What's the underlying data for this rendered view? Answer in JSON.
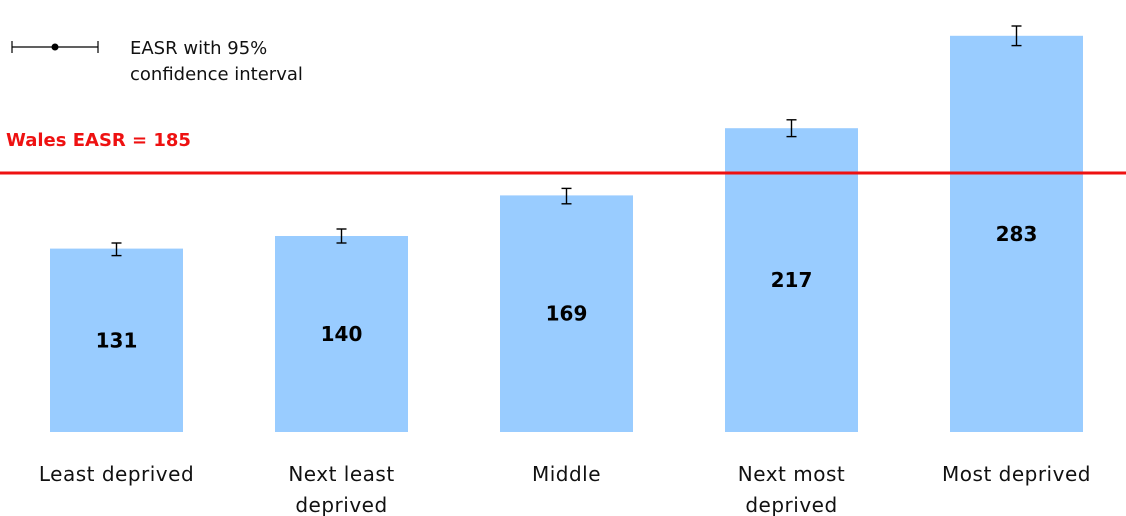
{
  "chart_data": {
    "type": "bar",
    "categories": [
      [
        "Least deprived"
      ],
      [
        "Next least",
        "deprived"
      ],
      [
        "Middle"
      ],
      [
        "Next most",
        "deprived"
      ],
      [
        "Most deprived"
      ]
    ],
    "values": [
      131,
      140,
      169,
      217,
      283
    ],
    "error_bars": [
      {
        "lower": 126,
        "upper": 135
      },
      {
        "lower": 135,
        "upper": 145
      },
      {
        "lower": 163,
        "upper": 174
      },
      {
        "lower": 211,
        "upper": 223
      },
      {
        "lower": 276,
        "upper": 290
      }
    ],
    "reference_line": {
      "label": "Wales EASR = 185",
      "value": 185,
      "color": "#ee1111"
    },
    "legend": {
      "text": [
        "EASR with 95%",
        "confidence interval"
      ]
    },
    "bar_color": "#99ccff",
    "ylim": [
      0,
      300
    ],
    "grid": false
  }
}
